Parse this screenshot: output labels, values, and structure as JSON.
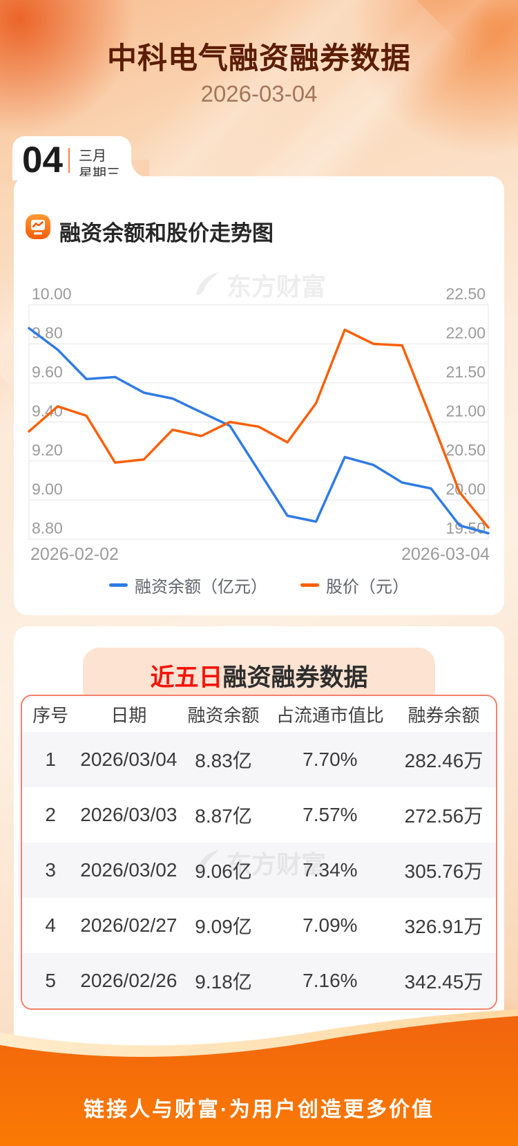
{
  "header": {
    "title": "中科电气融资融券数据",
    "date": "2026-03-04"
  },
  "calendar_card": {
    "day": "04",
    "month": "三月",
    "weekday": "星期三"
  },
  "chart_section": {
    "title": "融资余额和股价走势图",
    "watermark": "东方财富",
    "chart_data": {
      "type": "line",
      "title": "融资余额和股价走势图",
      "grid": true,
      "legend_position": "bottom",
      "x_axis": {
        "labels": [
          "2026-02-02",
          "2026-03-04"
        ]
      },
      "left_axis": {
        "name": "融资余额（亿元）",
        "min": 8.8,
        "max": 10.0,
        "ticks": [
          "10.00",
          "9.80",
          "9.60",
          "9.40",
          "9.20",
          "9.00",
          "8.80"
        ]
      },
      "right_axis": {
        "name": "股价（元）",
        "min": 19.5,
        "max": 22.5,
        "ticks": [
          "22.50",
          "22.00",
          "21.50",
          "21.00",
          "20.50",
          "20.00",
          "19.50"
        ]
      },
      "series": [
        {
          "name": "融资余额（亿元）",
          "axis": "left",
          "color": "#2f7be5",
          "values": [
            9.88,
            9.77,
            9.62,
            9.63,
            9.55,
            9.52,
            9.45,
            9.38,
            9.15,
            8.92,
            8.89,
            9.22,
            9.18,
            9.09,
            9.06,
            8.87,
            8.83
          ]
        },
        {
          "name": "股价（元）",
          "axis": "right",
          "color": "#f96008",
          "values": [
            20.88,
            21.2,
            21.08,
            20.48,
            20.52,
            20.9,
            20.82,
            21.0,
            20.94,
            20.74,
            21.24,
            22.18,
            22.0,
            21.98,
            21.05,
            20.1,
            19.65
          ]
        }
      ]
    }
  },
  "table_section": {
    "title": {
      "highlight": "近五日",
      "rest": "融资融券数据"
    },
    "watermark": "东方财富",
    "columns": [
      "序号",
      "日期",
      "融资余额",
      "占流通市值比",
      "融券余额"
    ],
    "rows": [
      [
        "1",
        "2026/03/04",
        "8.83亿",
        "7.70%",
        "282.46万"
      ],
      [
        "2",
        "2026/03/03",
        "8.87亿",
        "7.57%",
        "272.56万"
      ],
      [
        "3",
        "2026/03/02",
        "9.06亿",
        "7.34%",
        "305.76万"
      ],
      [
        "4",
        "2026/02/27",
        "9.09亿",
        "7.09%",
        "326.91万"
      ],
      [
        "5",
        "2026/02/26",
        "9.18亿",
        "7.16%",
        "342.45万"
      ]
    ]
  },
  "footer": {
    "slogan": "链接人与财富·为用户创造更多价值"
  },
  "colors": {
    "accent": "#f4690a",
    "line_blue": "#2f7be5",
    "line_orange": "#f96008",
    "title_brown": "#5b1d04",
    "highlight_red": "#f3140a"
  }
}
